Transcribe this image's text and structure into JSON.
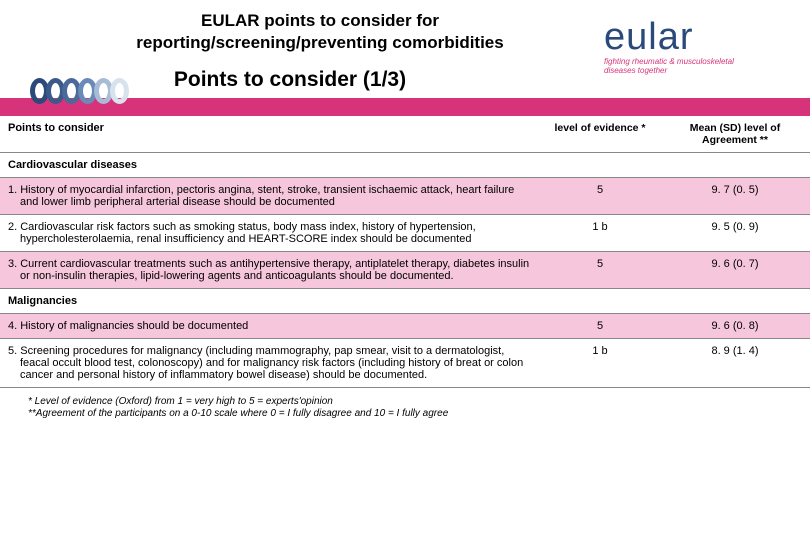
{
  "header": {
    "title_line1": "EULAR points to consider for",
    "title_line2": "reporting/screening/preventing comorbidities",
    "subtitle": "Points to consider (1/3)"
  },
  "logo": {
    "word": "eular",
    "tagline1": "fighting rheumatic & musculoskeletal",
    "tagline2": "diseases together"
  },
  "table": {
    "headers": {
      "item": "Points to consider",
      "evidence": "level of evidence *",
      "agreement": "Mean (SD) level of Agreement  **"
    },
    "section1": "Cardiovascular diseases",
    "row1": {
      "text": "1. History of myocardial infarction, pectoris angina, stent, stroke, transient ischaemic attack, heart failure and lower limb peripheral arterial disease should be documented",
      "evidence": "5",
      "agreement": "9. 7 (0. 5)"
    },
    "row2": {
      "text": "2. Cardiovascular risk factors such as smoking status, body mass index, history of hypertension, hypercholesterolaemia, renal insufficiency and HEART-SCORE index should be documented",
      "evidence": "1 b",
      "agreement": "9. 5 (0. 9)"
    },
    "row3": {
      "text": "3. Current cardiovascular treatments such as antihypertensive therapy, antiplatelet therapy, diabetes insulin or non-insulin therapies, lipid-lowering agents and anticoagulants should be documented.",
      "evidence": "5",
      "agreement": "9. 6 (0. 7)"
    },
    "section2": "Malignancies",
    "row4": {
      "text": "4. History of malignancies should be documented",
      "evidence": "5",
      "agreement": "9. 6 (0. 8)"
    },
    "row5": {
      "text": "5. Screening procedures for malignancy (including mammography, pap smear, visit to a dermatologist, feacal occult blood test, colonoscopy) and for malignancy risk factors (including history of breat or colon cancer and personal history of inflammatory bowel disease) should be documented.",
      "evidence": "1 b",
      "agreement": "8. 9 (1. 4)"
    }
  },
  "footnotes": {
    "line1": "* Level of evidence (Oxford) from 1 = very high to 5 = experts'opinion",
    "line2": "**Agreement of the participants on a 0-10 scale where 0 = I fully disagree and 10 = I fully agree"
  },
  "colors": {
    "pink_bar": "#d6337a",
    "pink_row": "#f6c6dc",
    "logo_blue": "#2a4a7a"
  }
}
